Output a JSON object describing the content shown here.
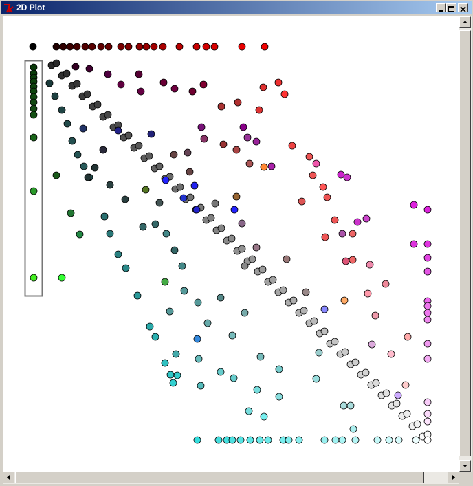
{
  "window": {
    "title": "2D Plot"
  },
  "chart_data": {
    "type": "scatter",
    "x": [
      1,
      35,
      45,
      55,
      65,
      77,
      87,
      100,
      111,
      129,
      140,
      156,
      166,
      177,
      190,
      214,
      239,
      253,
      265,
      305,
      338,
      2,
      2,
      2,
      2,
      2,
      2,
      2,
      2,
      2,
      2,
      2,
      2,
      2,
      43,
      28,
      43,
      58,
      73,
      88,
      103,
      118,
      133,
      148,
      163,
      178,
      193,
      208,
      223,
      238,
      253,
      268,
      283,
      298,
      313,
      328,
      343,
      358,
      373,
      388,
      403,
      418,
      433,
      448,
      463,
      478,
      493,
      508,
      523,
      538,
      553,
      568,
      35,
      50,
      65,
      80,
      95,
      110,
      125,
      140,
      155,
      170,
      185,
      200,
      215,
      230,
      245,
      260,
      275,
      290,
      305,
      320,
      335,
      350,
      365,
      380,
      395,
      410,
      425,
      440,
      455,
      470,
      485,
      500,
      515,
      530,
      545,
      560,
      575,
      25,
      33,
      43,
      51,
      58,
      66,
      75,
      83,
      105,
      113,
      125,
      136,
      153,
      171,
      179,
      193,
      201,
      211,
      205,
      240,
      271,
      283,
      291,
      303,
      317,
      331,
      343,
      365,
      373,
      388,
      425,
      441,
      451,
      470,
      502,
      519,
      533,
      558,
      575,
      575,
      575,
      575,
      575,
      575,
      575,
      575,
      575,
      575,
      575,
      575,
      575,
      575,
      555,
      555,
      63,
      83,
      110,
      155,
      129,
      191,
      207,
      233,
      249,
      158,
      275,
      299,
      336,
      358,
      367,
      330,
      307,
      313,
      326,
      246,
      250,
      278,
      297,
      316,
      337,
      348,
      378,
      403,
      413,
      408,
      449,
      458,
      423,
      429,
      392,
      440,
      473,
      486,
      451,
      466,
      426,
      456,
      466,
      491,
      514,
      488,
      454,
      425,
      499,
      494,
      522,
      546,
      543,
      532,
      463,
      453,
      35,
      56,
      69,
      165,
      193,
      161,
      179,
      195,
      207,
      218,
      221,
      200,
      241,
      274,
      255,
      240,
      242,
      209,
      245,
      274,
      293,
      291,
      309,
      332,
      359,
      327,
      315,
      337,
      359,
      413,
      417,
      467,
      194,
      236,
      220,
      239,
      294,
      125,
      173,
      74,
      103,
      91,
      81,
      113,
      135,
      185,
      206,
      226,
      229,
      266,
      297,
      305,
      326,
      309,
      370,
      398
    ],
    "y": [
      572,
      572,
      572,
      572,
      572,
      572,
      572,
      572,
      572,
      572,
      572,
      572,
      572,
      572,
      572,
      572,
      572,
      572,
      572,
      572,
      572,
      542,
      533,
      527,
      521,
      514,
      507,
      499,
      491,
      482,
      473,
      440,
      362,
      236,
      236,
      545,
      530,
      515,
      500,
      485,
      470,
      455,
      440,
      425,
      410,
      395,
      380,
      365,
      350,
      335,
      320,
      305,
      290,
      275,
      260,
      245,
      230,
      215,
      200,
      185,
      170,
      155,
      140,
      125,
      110,
      95,
      80,
      65,
      50,
      35,
      20,
      5,
      548,
      533,
      518,
      503,
      488,
      473,
      458,
      443,
      428,
      413,
      398,
      383,
      368,
      353,
      338,
      323,
      308,
      293,
      278,
      263,
      248,
      233,
      218,
      203,
      188,
      173,
      158,
      143,
      128,
      113,
      98,
      83,
      68,
      53,
      38,
      23,
      8,
      519,
      500,
      480,
      460,
      435,
      415,
      398,
      382,
      325,
      300,
      270,
      250,
      210,
      165,
      150,
      112,
      95,
      94,
      83,
      0,
      0,
      0,
      0,
      0,
      0,
      0,
      0,
      0,
      0,
      0,
      0,
      0,
      0,
      0,
      0,
      0,
      0,
      0,
      0,
      335,
      285,
      265,
      245,
      202,
      195,
      185,
      175,
      140,
      118,
      55,
      38,
      27,
      342,
      285,
      543,
      540,
      532,
      532,
      517,
      520,
      511,
      507,
      517,
      507,
      485,
      491,
      513,
      520,
      503,
      480,
      455,
      440,
      434,
      455,
      438,
      430,
      422,
      402,
      397,
      398,
      428,
      412,
      402,
      385,
      386,
      382,
      368,
      353,
      347,
      320,
      317,
      322,
      300,
      300,
      295,
      260,
      262,
      255,
      227,
      213,
      203,
      190,
      181,
      139,
      125,
      150,
      80,
      65,
      50,
      50,
      385,
      330,
      299,
      364,
      230,
      310,
      314,
      300,
      276,
      253,
      217,
      187,
      200,
      207,
      170,
      147,
      118,
      125,
      79,
      99,
      90,
      152,
      185,
      121,
      103,
      73,
      42,
      34,
      63,
      89,
      127,
      16,
      378,
      370,
      352,
      335,
      335,
      450,
      445,
      453,
      422,
      396,
      382,
      371,
      350,
      345,
      415,
      418,
      390,
      344,
      354,
      315,
      280,
      253,
      263,
      215
    ],
    "colors": [
      "#000000",
      "#200000",
      "#300000",
      "#3a0000",
      "#450000",
      "#500000",
      "#580000",
      "#600000",
      "#680000",
      "#780000",
      "#800000",
      "#900000",
      "#980000",
      "#a00000",
      "#a80000",
      "#b80000",
      "#c80000",
      "#d00000",
      "#d80000",
      "#e80000",
      "#f00000",
      "#0a3a0a",
      "#0b3c0b",
      "#0c3e0c",
      "#0d400d",
      "#0e420e",
      "#0f440f",
      "#104610",
      "#114811",
      "#124a12",
      "#145014",
      "#1a661a",
      "#2a992a",
      "#44ee22",
      "#33ff33",
      "#2a2a2a",
      "#303030",
      "#353535",
      "#3b3b3b",
      "#414141",
      "#474747",
      "#4c4c4c",
      "#525252",
      "#585858",
      "#5d5d5d",
      "#636363",
      "#696969",
      "#6e6e6e",
      "#747474",
      "#7a7a7a",
      "#808080",
      "#858585",
      "#8b8b8b",
      "#919191",
      "#969696",
      "#9c9c9c",
      "#a2a2a2",
      "#a7a7a7",
      "#adadad",
      "#b3b3b3",
      "#b9b9b9",
      "#bebebe",
      "#c4c4c4",
      "#cacaca",
      "#cfcfcf",
      "#d5d5d5",
      "#dbdbdb",
      "#e0e0e0",
      "#e6e6e6",
      "#ececec",
      "#f2f2f2",
      "#f7f7f7",
      "#2a2a2a",
      "#303030",
      "#353535",
      "#3b3b3b",
      "#414141",
      "#474747",
      "#4c4c4c",
      "#525252",
      "#585858",
      "#5d5d5d",
      "#636363",
      "#696969",
      "#6e6e6e",
      "#747474",
      "#7a7a7a",
      "#808080",
      "#858585",
      "#8b8b8b",
      "#919191",
      "#969696",
      "#9c9c9c",
      "#a2a2a2",
      "#a7a7a7",
      "#adadad",
      "#b3b3b3",
      "#b9b9b9",
      "#bebebe",
      "#c4c4c4",
      "#cacaca",
      "#cfcfcf",
      "#d5d5d5",
      "#dbdbdb",
      "#e0e0e0",
      "#e6e6e6",
      "#ececec",
      "#f2f2f2",
      "#f7f7f7",
      "#1a3a3a",
      "#1e4040",
      "#204545",
      "#224a4a",
      "#245050",
      "#265555",
      "#285a5a",
      "#2a6060",
      "#2a7070",
      "#2a7878",
      "#2a8080",
      "#2a8888",
      "#2a9999",
      "#2aaaaa",
      "#2ab0b0",
      "#30c0c0",
      "#30c8c8",
      "#33cccc",
      "#33d0d0",
      "#33dddd",
      "#44dddd",
      "#44e0e0",
      "#4ee0e0",
      "#55e4e4",
      "#5ee6e6",
      "#66e8e8",
      "#6eeaea",
      "#77eeee",
      "#80eeee",
      "#88eeee",
      "#99f0f0",
      "#a0f2f2",
      "#aaf4f4",
      "#b4f6f6",
      "#c4f8f8",
      "#ccfafa",
      "#d8fcfc",
      "#eeffff",
      "#ffffff",
      "#dd22dd",
      "#e033e0",
      "#e244e2",
      "#e455e4",
      "#ee66ee",
      "#ee77ee",
      "#ee77ee",
      "#f088f0",
      "#f099f0",
      "#f4aaf4",
      "#f8ccf8",
      "#fadafa",
      "#fce4fc",
      "#dd22dd",
      "#dd33dd",
      "#330022",
      "#400030",
      "#500040",
      "#550033",
      "#600040",
      "#6a0035",
      "#700040",
      "#700030",
      "#800030",
      "#660044",
      "#aa3333",
      "#b03030",
      "#e03030",
      "#ee3030",
      "#ff3333",
      "#dd3333",
      "#880088",
      "#993399",
      "#992299",
      "#771177",
      "#883366",
      "#993333",
      "#aa4444",
      "#aa5555",
      "#ff8833",
      "#aa22aa",
      "#ee4444",
      "#ee5555",
      "#ee55aa",
      "#ee5555",
      "#cc22cc",
      "#cc33cc",
      "#ff5555",
      "#ee5555",
      "#dd5555",
      "#ee5555",
      "#cc33cc",
      "#cc44cc",
      "#aa55aa",
      "#ee6666",
      "#ee5555",
      "#dd5577",
      "#ee6666",
      "#ee88aa",
      "#ee8899",
      "#ff99aa",
      "#ffaa66",
      "#8888ff",
      "#ee99aa",
      "#ddaadd",
      "#ffbbcc",
      "#ffaaaa",
      "#ffcccc",
      "#ccaaff",
      "#aadddd",
      "#aadddd",
      "#1a5a1a",
      "#227733",
      "#228844",
      "#557722",
      "#44aa44",
      "#336666",
      "#336666",
      "#448888",
      "#336666",
      "#448888",
      "#559999",
      "#559999",
      "#559999",
      "#558888",
      "#66aaaa",
      "#3388dd",
      "#66bbbb",
      "#44aaaa",
      "#55bbbb",
      "#66cccc",
      "#66cccc",
      "#77bbbb",
      "#77aaaa",
      "#77bbbb",
      "#77cccc",
      "#77dddd",
      "#77dddd",
      "#77eeee",
      "#88dddd",
      "#99dddd",
      "#99cccc",
      "#aaeeee",
      "#2222ff",
      "#2222ee",
      "#2233cc",
      "#2222cc",
      "#2222ff",
      "#222288",
      "#222277",
      "#223366",
      "#2a2a3a",
      "#223333",
      "#223333",
      "#2a4040",
      "#2a4040",
      "#445555",
      "#664444",
      "#664455",
      "#664444",
      "#777777",
      "#996633",
      "#886688",
      "#997788",
      "#888888",
      "#997777",
      "#998888"
    ],
    "xlim": [
      0,
      575
    ],
    "ylim": [
      0,
      573
    ]
  }
}
